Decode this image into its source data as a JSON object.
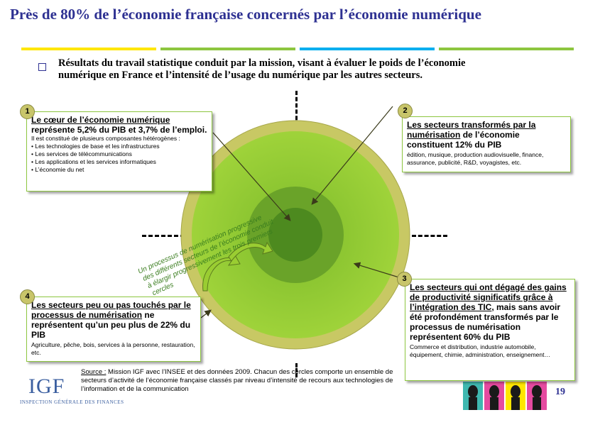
{
  "title": "Près de 80% de l’économie française concernés par l’économie numérique",
  "header_rule_colors": [
    "#ffe600",
    "#8dc63f",
    "#00aeef",
    "#8dc63f"
  ],
  "intro": {
    "line1": "Résultats du travail statistique conduit par la mission, visant à évaluer le poids de l’économie",
    "line2": "numérique en France et l’intensité de l’usage du numérique par les autres secteurs."
  },
  "boxes": {
    "b1": {
      "num": "1",
      "head_u": "Le cœur de l’économie numérique",
      "head_rest": " représente 5,2% du PIB et 3,7% de l’emploi.",
      "body": "Il est constitué de plusieurs composantes hétérogènes :",
      "items": [
        "• Les technologies de base et les infrastructures",
        "• Les services de télécommunications",
        "• Les applications et les services informatiques",
        "• L’économie du net"
      ]
    },
    "b2": {
      "num": "2",
      "head_u": "Les secteurs transformés par la numérisation",
      "head_rest": " de l’économie constituent 12% du PIB",
      "body": "édition, musique, production audiovisuelle, finance, assurance, publicité, R&D, voyagistes, etc."
    },
    "b3": {
      "num": "3",
      "head_u": "Les secteurs qui ont dégagé des gains de productivité significatifs grâce à l’intégration des TIC",
      "head_rest": ", mais sans avoir été profondément transformés par le processus de numérisation représentent 60% du PIB",
      "body": "Commerce et distribution, industrie automobile, équipement, chimie, administration, enseignement…"
    },
    "b4": {
      "num": "4",
      "head_u": "Les secteurs peu ou pas touchés par le processus de numérisation",
      "head_rest": " ne représentent qu’un peu plus de 22% du PIB",
      "body": "Agriculture, pêche, bois, services à la personne, restauration, etc."
    }
  },
  "arc_text": {
    "l1": "Un processus de numérisation progressive",
    "l2": "des différents secteurs de l’économie conduit",
    "l3": "à élargir progressivement les trois premiers",
    "l4": "cercles"
  },
  "source": {
    "label": "Source :",
    "text": " Mission IGF avec l’INSEE et des données 2009. Chacun des cercles comporte un ensemble de secteurs d’activité de l’économie française classés par niveau d’intensité de recours aux technologies de l’information et de la communication"
  },
  "logo": {
    "mark": "IGF",
    "sub": "INSPECTION GÉNÉRALE DES FINANCES"
  },
  "page_number": "19",
  "colors": {
    "outer_ring": "#c8c864",
    "ring3": "#8dc63f",
    "ring3_fill": "#9acd32",
    "ring2": "#6aa329",
    "core": "#4d8a1f",
    "title_blue": "#2e3192"
  }
}
